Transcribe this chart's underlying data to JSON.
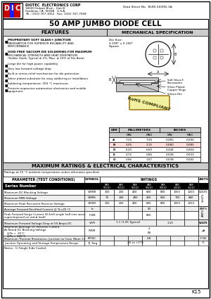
{
  "title": "50 AMP JUMBO DIODE CELL",
  "company": "DIOTEC  ELECTRONICS CORP",
  "address1": "18020 Hobart Blvd.,  Unit B",
  "address2": "Gardena, CA  90248   U.S.A.",
  "address3": "Tel.: (310) 767-1052   Fax: (310) 767-7958",
  "datasheet": "Data Sheet No.  BUDI-5000D-1A",
  "page": "K15",
  "features_title": "FEATURES",
  "mech_title": "MECHANICAL SPECIFICATION",
  "features": [
    "PROPRIETARY SOFT GLASS® JUNCTION\nPASSIVATION FOR SUPERIOR RELIABILITY AND\nPERFORMANCE",
    "VOID FREE VACUUM DIE SOLDERING FOR MAXIMUM\nMECHANICAL STRENGTH AND HEAT DISSIPATION\n(Solder Voids: Typical ≤ 2%, Max. ≤ 10% of Die Area)",
    "Large die for high power capability",
    "Very low forward voltage drop",
    "Built-in stress relief mechanism for die protection",
    "Silver plated substrate for easy soldering or installation",
    "Soldering temperature: 350 °C maximum.",
    "Protects expensive automotive electronics and mobile\nequipment"
  ],
  "die_size_text": "Die Size:\n0.190\" x 0.190\"\nSquare",
  "dim_rows": [
    [
      "A",
      "7.25",
      "7.35",
      "0.285",
      "0.290"
    ],
    [
      "B",
      "2.05",
      "2.15",
      "0.080",
      "0.085"
    ],
    [
      "D",
      "6.20",
      "6.60",
      "0.244",
      "0.260"
    ],
    [
      "E",
      "0.72",
      "0.85",
      "0.028",
      "0.033"
    ],
    [
      "G",
      "0.96",
      "1.07",
      "0.038",
      "0.042"
    ]
  ],
  "ratings_title": "MAXIMUM RATINGS & ELECTRICAL CHARACTERISTICS",
  "ratings_note": "Ratings at 25 °C ambient temperature unless otherwise specified.",
  "series_row_label": "Series Number",
  "series_numbers": [
    "BAR\n5011D",
    "BAR\n5021D",
    "BAR\n5041D",
    "BAR\n5061D",
    "BAR\n5081D",
    "BAR\n5101D",
    "BAR\n5121D"
  ],
  "notes": "Notes:  1) Single Side Cooled",
  "bg_color": "#ffffff",
  "section_header_bg": "#cccccc",
  "rohs_bg": "#e8e8e8",
  "black_row_bg": "#000000",
  "dim_b_highlight": "#ffcccc"
}
